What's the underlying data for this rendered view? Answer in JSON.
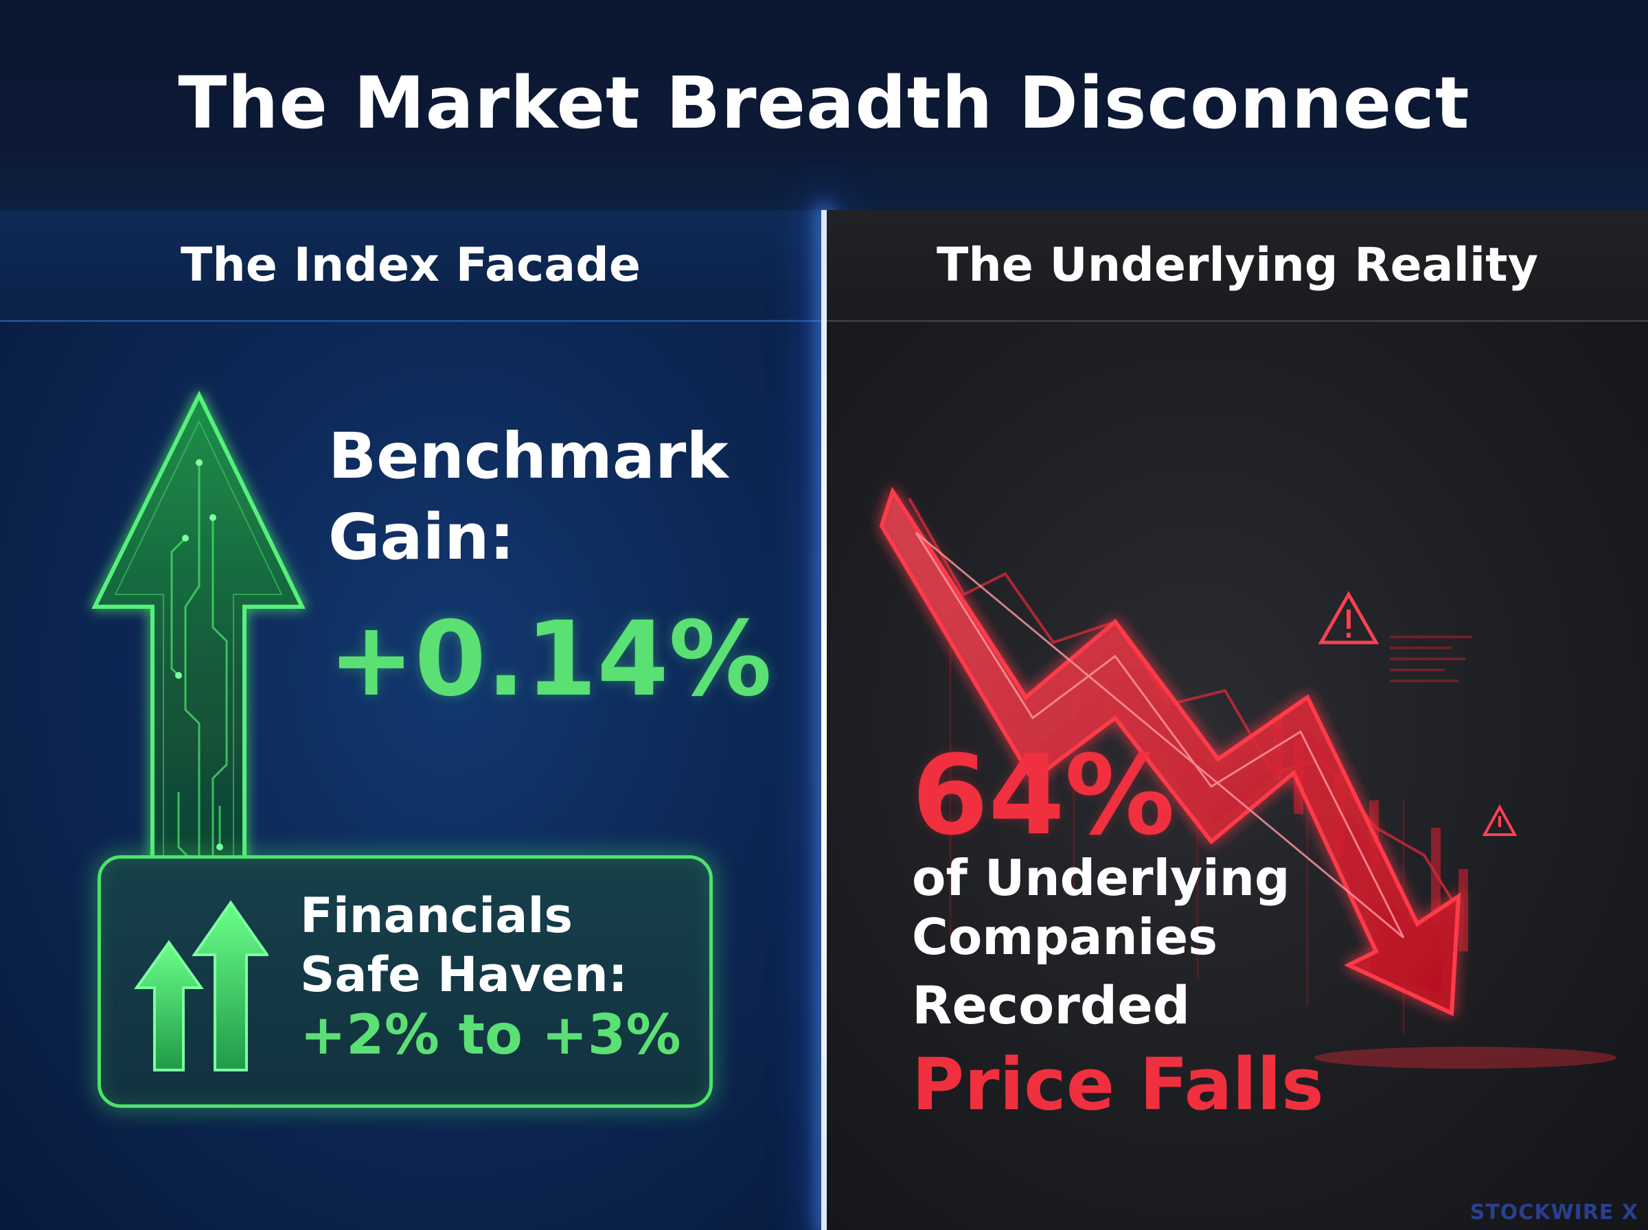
{
  "header": {
    "title": "The Market Breadth Disconnect"
  },
  "left_panel": {
    "heading": "The Index Facade",
    "benchmark": {
      "line1": "Benchmark",
      "line2": "Gain:",
      "value": "+0.14%"
    },
    "financials": {
      "line1": "Financials",
      "line2": "Safe Haven:",
      "value": "+2% to +3%"
    }
  },
  "right_panel": {
    "heading": "The Underlying Reality",
    "stat": "64%",
    "line1": "of Underlying",
    "line2": "Companies",
    "line3": "Recorded",
    "emphasis": "Price Falls"
  },
  "brand": {
    "name": "STOCKWIRE X"
  },
  "colors": {
    "green": "#5be074",
    "red": "#f0303f",
    "navy": "#0d2856",
    "charcoal": "#1c1e22"
  },
  "icons": {
    "big_arrow": "circuit-up-arrow-icon",
    "small_arrows": "double-up-arrow-icon",
    "red_chart": "falling-trend-arrow-icon",
    "warning": "warning-triangle-icon"
  }
}
